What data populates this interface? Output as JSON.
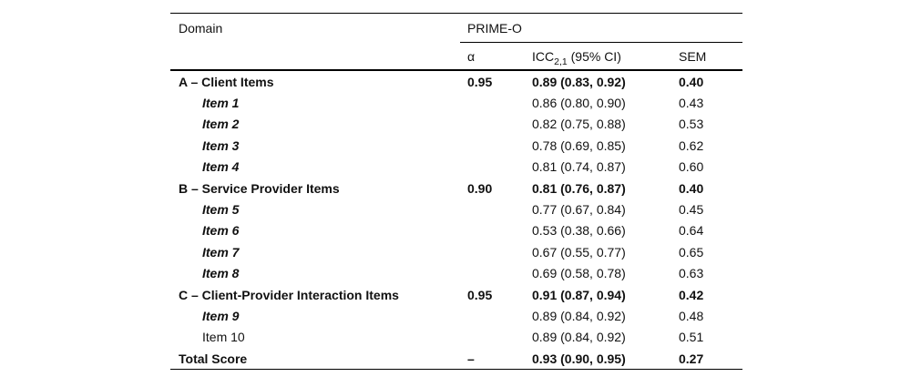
{
  "table": {
    "columns": {
      "domain": "Domain",
      "spanner": "PRIME-O",
      "alpha": "α",
      "icc_prefix": "ICC",
      "icc_sub": "2,1",
      "icc_suffix": " (95% CI)",
      "sem": "SEM"
    },
    "rows": [
      {
        "label": "A – Client Items",
        "alpha": "0.95",
        "icc": "0.89 (0.83, 0.92)",
        "sem": "0.40"
      },
      {
        "label": "Item 1",
        "alpha": "",
        "icc": "0.86 (0.80, 0.90)",
        "sem": "0.43"
      },
      {
        "label": "Item 2",
        "alpha": "",
        "icc": "0.82 (0.75, 0.88)",
        "sem": "0.53"
      },
      {
        "label": "Item 3",
        "alpha": "",
        "icc": "0.78 (0.69, 0.85)",
        "sem": "0.62"
      },
      {
        "label": "Item 4",
        "alpha": "",
        "icc": "0.81 (0.74, 0.87)",
        "sem": "0.60"
      },
      {
        "label": "B – Service Provider Items",
        "alpha": "0.90",
        "icc": "0.81 (0.76, 0.87)",
        "sem": "0.40"
      },
      {
        "label": "Item 5",
        "alpha": "",
        "icc": "0.77 (0.67, 0.84)",
        "sem": "0.45"
      },
      {
        "label": "Item 6",
        "alpha": "",
        "icc": "0.53 (0.38, 0.66)",
        "sem": "0.64"
      },
      {
        "label": "Item 7",
        "alpha": "",
        "icc": "0.67 (0.55, 0.77)",
        "sem": "0.65"
      },
      {
        "label": "Item 8",
        "alpha": "",
        "icc": "0.69 (0.58, 0.78)",
        "sem": "0.63"
      },
      {
        "label": "C – Client-Provider Interaction Items",
        "alpha": "0.95",
        "icc": "0.91 (0.87, 0.94)",
        "sem": "0.42"
      },
      {
        "label": "Item 9",
        "alpha": "",
        "icc": "0.89 (0.84, 0.92)",
        "sem": "0.48"
      },
      {
        "label": "Item 10",
        "alpha": "",
        "icc": "0.89 (0.84, 0.92)",
        "sem": "0.51"
      },
      {
        "label": "Total Score",
        "alpha": "–",
        "icc": "0.93 (0.90, 0.95)",
        "sem": "0.27"
      }
    ]
  },
  "colors": {
    "background": "#ffffff",
    "text": "#111111",
    "rule": "#000000"
  }
}
